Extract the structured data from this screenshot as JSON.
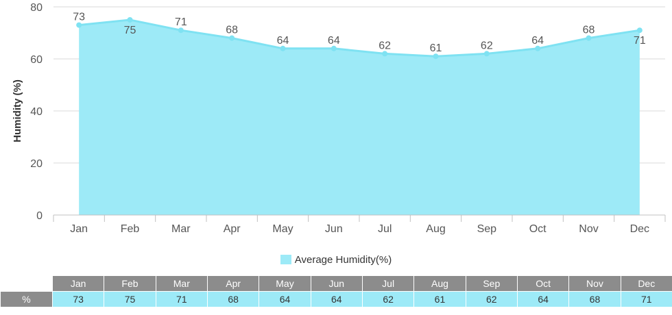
{
  "chart_data": {
    "type": "area",
    "categories": [
      "Jan",
      "Feb",
      "Mar",
      "Apr",
      "May",
      "Jun",
      "Jul",
      "Aug",
      "Sep",
      "Oct",
      "Nov",
      "Dec"
    ],
    "series": [
      {
        "name": "Average Humidity(%)",
        "values": [
          73,
          75,
          71,
          68,
          64,
          64,
          62,
          61,
          62,
          64,
          68,
          71
        ]
      }
    ],
    "ylabel": "Humidity (%)",
    "ylim": [
      0,
      80
    ],
    "yticks": [
      0,
      20,
      40,
      60,
      80
    ],
    "grid": true,
    "legend_position": "bottom",
    "colors": {
      "line": "#7fe2f2",
      "fill": "#9deaf7",
      "grid": "#d8d8d8",
      "axis": "#c0c0c0",
      "text": "#555555"
    }
  },
  "table": {
    "row_label": "%",
    "header_color": "#8c8c8c",
    "cell_color": "#9deaf7"
  }
}
